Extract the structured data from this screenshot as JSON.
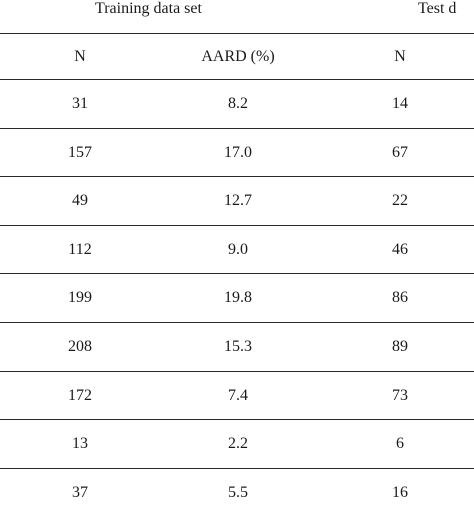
{
  "groups": {
    "training": "Training data set",
    "test": "Test d"
  },
  "columns": {
    "n_train": "N",
    "aard_train": "AARD (%)",
    "n_test": "N"
  },
  "rows": [
    {
      "n_train": "31",
      "aard_train": "8.2",
      "n_test": "14"
    },
    {
      "n_train": "157",
      "aard_train": "17.0",
      "n_test": "67"
    },
    {
      "n_train": "49",
      "aard_train": "12.7",
      "n_test": "22"
    },
    {
      "n_train": "112",
      "aard_train": "9.0",
      "n_test": "46"
    },
    {
      "n_train": "199",
      "aard_train": "19.8",
      "n_test": "86"
    },
    {
      "n_train": "208",
      "aard_train": "15.3",
      "n_test": "89"
    },
    {
      "n_train": "172",
      "aard_train": "7.4",
      "n_test": "73"
    },
    {
      "n_train": "13",
      "aard_train": "2.2",
      "n_test": "6"
    },
    {
      "n_train": "37",
      "aard_train": "5.5",
      "n_test": "16"
    }
  ]
}
